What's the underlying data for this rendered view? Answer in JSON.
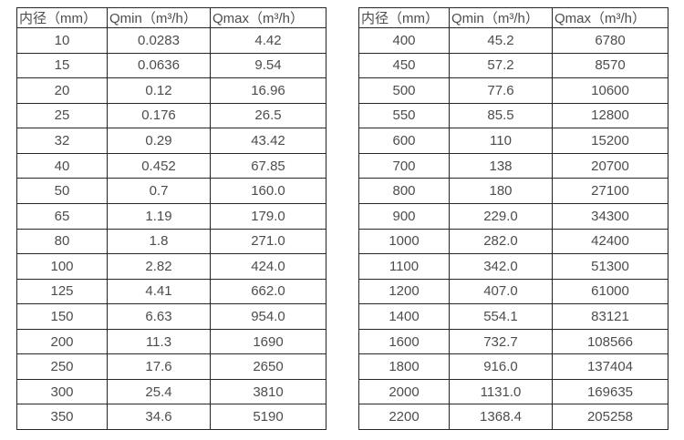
{
  "page": {
    "background": "#ffffff",
    "border_color": "#262626",
    "text_color": "#4d4d4d"
  },
  "tables": [
    {
      "name": "flow-table-small-diameter",
      "headers": [
        "内径（mm）",
        "Qmin（m³/h）",
        "Qmax（m³/h）"
      ],
      "rows": [
        [
          "10",
          "0.0283",
          "4.42"
        ],
        [
          "15",
          "0.0636",
          "9.54"
        ],
        [
          "20",
          "0.12",
          "16.96"
        ],
        [
          "25",
          "0.176",
          "26.5"
        ],
        [
          "32",
          "0.29",
          "43.42"
        ],
        [
          "40",
          "0.452",
          "67.85"
        ],
        [
          "50",
          "0.7",
          "160.0"
        ],
        [
          "65",
          "1.19",
          "179.0"
        ],
        [
          "80",
          "1.8",
          "271.0"
        ],
        [
          "100",
          "2.82",
          "424.0"
        ],
        [
          "125",
          "4.41",
          "662.0"
        ],
        [
          "150",
          "6.63",
          "954.0"
        ],
        [
          "200",
          "11.3",
          "1690"
        ],
        [
          "250",
          "17.6",
          "2650"
        ],
        [
          "300",
          "25.4",
          "3810"
        ],
        [
          "350",
          "34.6",
          "5190"
        ]
      ]
    },
    {
      "name": "flow-table-large-diameter",
      "headers": [
        "内径（mm）",
        "Qmin（m³/h）",
        "Qmax（m³/h）"
      ],
      "rows": [
        [
          "400",
          "45.2",
          "6780"
        ],
        [
          "450",
          "57.2",
          "8570"
        ],
        [
          "500",
          "77.6",
          "10600"
        ],
        [
          "550",
          "85.5",
          "12800"
        ],
        [
          "600",
          "110",
          "15200"
        ],
        [
          "700",
          "138",
          "20700"
        ],
        [
          "800",
          "180",
          "27100"
        ],
        [
          "900",
          "229.0",
          "34300"
        ],
        [
          "1000",
          "282.0",
          "42400"
        ],
        [
          "1100",
          "342.0",
          "51300"
        ],
        [
          "1200",
          "407.0",
          "61000"
        ],
        [
          "1400",
          "554.1",
          "83121"
        ],
        [
          "1600",
          "732.7",
          "108566"
        ],
        [
          "1800",
          "916.0",
          "137404"
        ],
        [
          "2000",
          "1131.0",
          "169635"
        ],
        [
          "2200",
          "1368.4",
          "205258"
        ]
      ]
    }
  ]
}
